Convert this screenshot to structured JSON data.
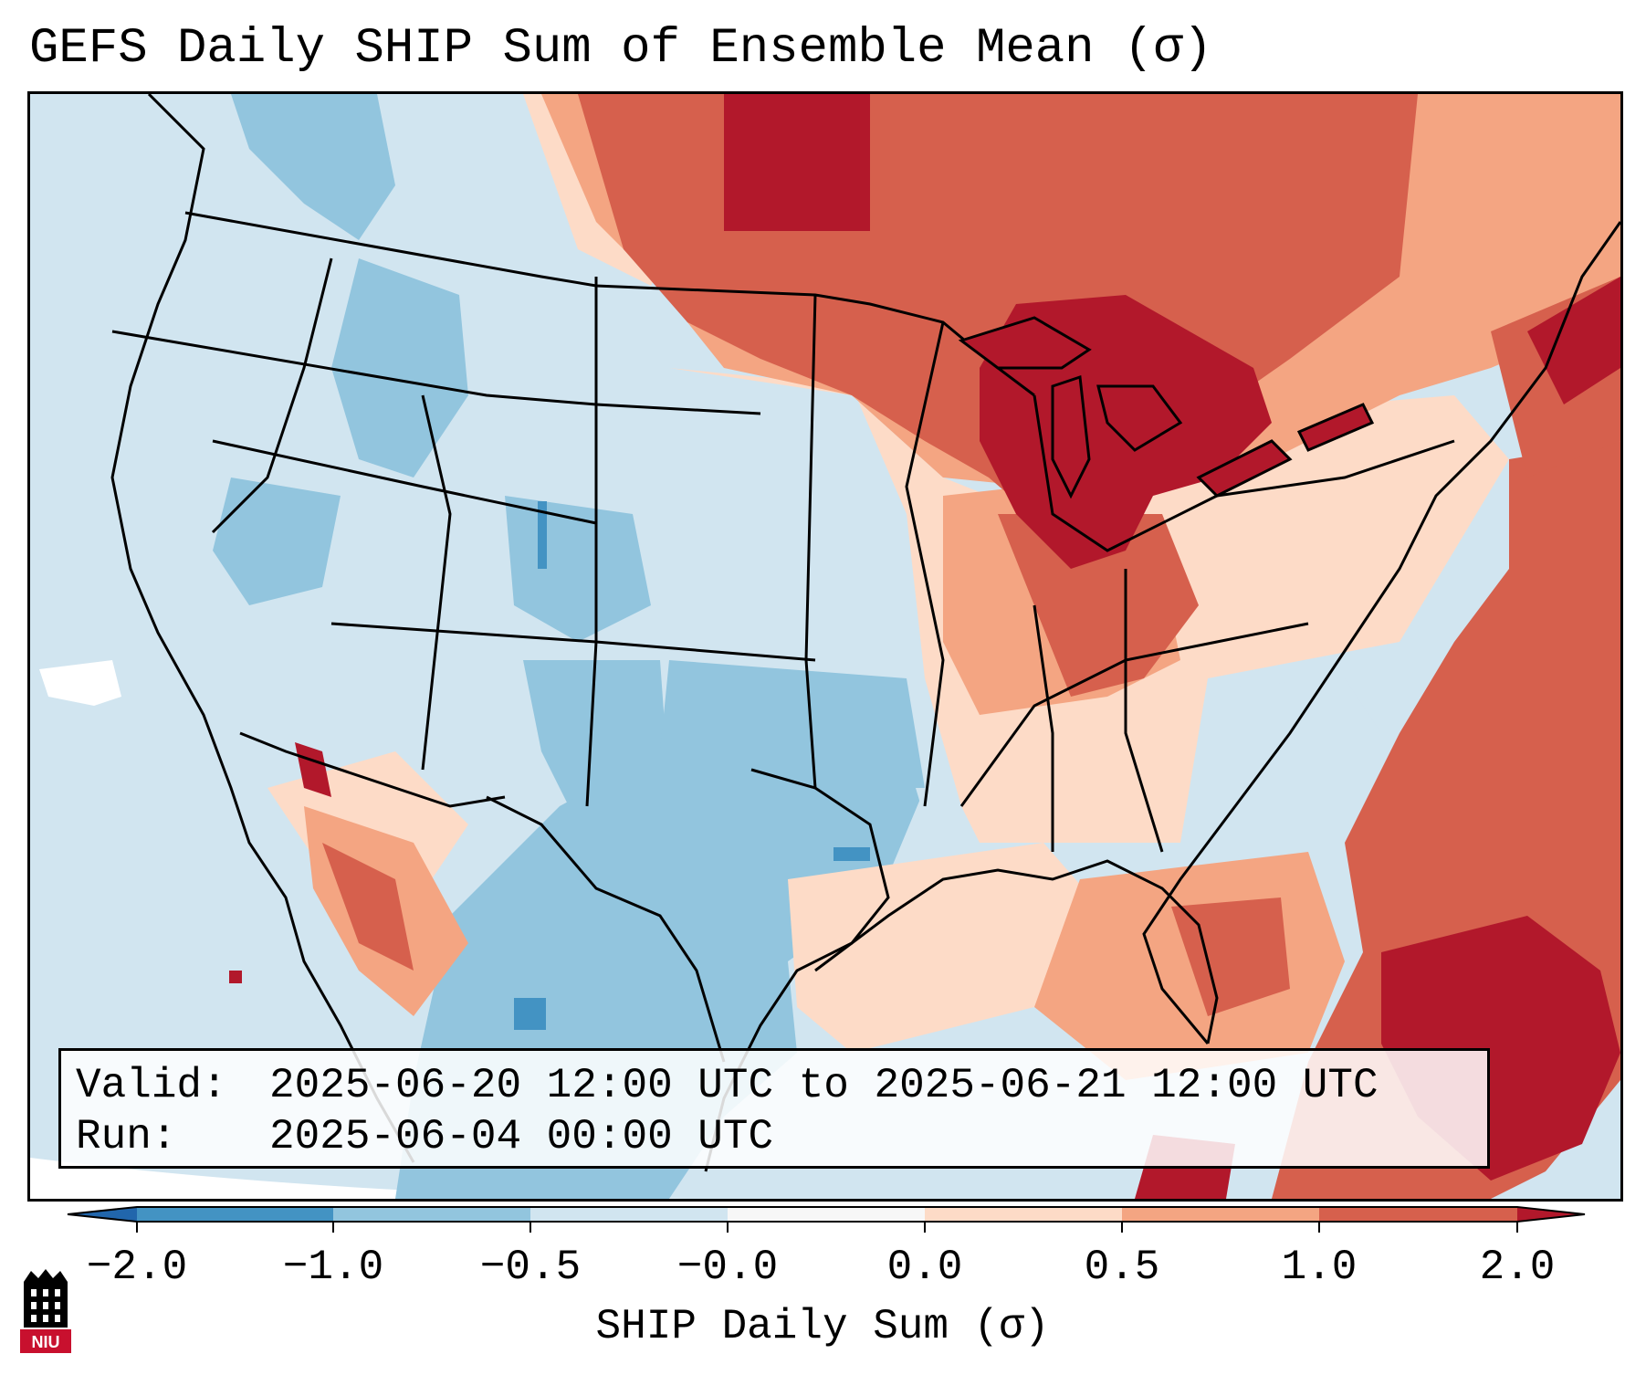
{
  "title": "GEFS Daily SHIP Sum of Ensemble Mean (σ)",
  "info": {
    "valid_label": "Valid:",
    "valid_value": "2025-06-20 12:00 UTC to 2025-06-21 12:00 UTC",
    "run_label": "Run:",
    "run_value": "2025-06-04 00:00 UTC"
  },
  "colorbar": {
    "label": "SHIP Daily Sum (σ)",
    "ticks": [
      "−2.0",
      "−1.0",
      "−0.5",
      "−0.0",
      "0.0",
      "0.5",
      "1.0",
      "2.0"
    ],
    "colors": {
      "below_min": "#2166ac",
      "bins": [
        "#4393c3",
        "#92c5de",
        "#d1e5f0",
        "#f7f7f7",
        "#fddbc7",
        "#f4a582",
        "#d6604d"
      ],
      "above_max": "#b2182b"
    }
  },
  "map": {
    "region": "Contiguous United States",
    "colors": {
      "ocean_bg": "#d1e5f0",
      "outside": "#ffffff",
      "strong_neg": "#4393c3",
      "neg": "#92c5de",
      "weak_neg": "#d1e5f0",
      "weak_pos": "#fddbc7",
      "pos": "#f4a582",
      "strong_pos": "#d6604d",
      "very_strong_pos": "#b2182b",
      "borders": "#000000"
    }
  },
  "logo": {
    "text": "NIU",
    "color": "#c8102e"
  }
}
